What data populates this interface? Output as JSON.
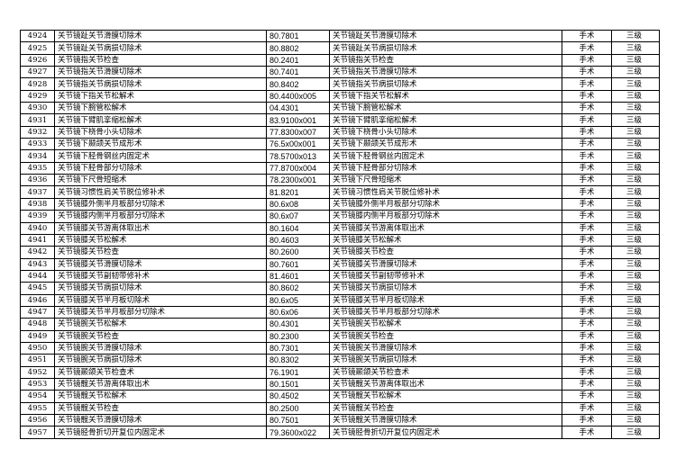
{
  "table": {
    "rows": [
      [
        "4924",
        "关节镜趾关节滑膜切除术",
        "80.7801",
        "关节镜趾关节滑膜切除术",
        "手术",
        "三级"
      ],
      [
        "4925",
        "关节镜趾关节病损切除术",
        "80.8802",
        "关节镜趾关节病损切除术",
        "手术",
        "三级"
      ],
      [
        "4926",
        "关节镜指关节检查",
        "80.2401",
        "关节镜指关节检查",
        "手术",
        "三级"
      ],
      [
        "4927",
        "关节镜指关节滑膜切除术",
        "80.7401",
        "关节镜指关节滑膜切除术",
        "手术",
        "三级"
      ],
      [
        "4928",
        "关节镜指关节病损切除术",
        "80.8402",
        "关节镜指关节病损切除术",
        "手术",
        "三级"
      ],
      [
        "4929",
        "关节镜下指关节松解术",
        "80.4400x005",
        "关节镜下指关节松解术",
        "手术",
        "三级"
      ],
      [
        "4930",
        "关节镜下腕管松解术",
        "04.4301",
        "关节镜下腕管松解术",
        "手术",
        "三级"
      ],
      [
        "4931",
        "关节镜下臂肌挛缩松解术",
        "83.9100x001",
        "关节镜下臂肌挛缩松解术",
        "手术",
        "三级"
      ],
      [
        "4932",
        "关节镜下桡骨小头切除术",
        "77.8300x007",
        "关节镜下桡骨小头切除术",
        "手术",
        "三级"
      ],
      [
        "4933",
        "关节镜下颞颌关节成形术",
        "76.5x00x001",
        "关节镜下颞颌关节成形术",
        "手术",
        "三级"
      ],
      [
        "4934",
        "关节镜下胫骨钢丝内固定术",
        "78.5700x013",
        "关节镜下胫骨钢丝内固定术",
        "手术",
        "三级"
      ],
      [
        "4935",
        "关节镜下胫骨部分切除术",
        "77.8700x004",
        "关节镜下胫骨部分切除术",
        "手术",
        "三级"
      ],
      [
        "4936",
        "关节镜下尺骨短缩术",
        "78.2300x001",
        "关节镜下尺骨短缩术",
        "手术",
        "三级"
      ],
      [
        "4937",
        "关节镜习惯性肩关节脱位修补术",
        "81.8201",
        "关节镜习惯性肩关节脱位修补术",
        "手术",
        "三级"
      ],
      [
        "4938",
        "关节镜膝外侧半月板部分切除术",
        "80.6x08",
        "关节镜膝外侧半月板部分切除术",
        "手术",
        "三级"
      ],
      [
        "4939",
        "关节镜膝内侧半月板部分切除术",
        "80.6x07",
        "关节镜膝内侧半月板部分切除术",
        "手术",
        "三级"
      ],
      [
        "4940",
        "关节镜膝关节游离体取出术",
        "80.1604",
        "关节镜膝关节游离体取出术",
        "手术",
        "三级"
      ],
      [
        "4941",
        "关节镜膝关节松解术",
        "80.4603",
        "关节镜膝关节松解术",
        "手术",
        "三级"
      ],
      [
        "4942",
        "关节镜膝关节检查",
        "80.2600",
        "关节镜膝关节检查",
        "手术",
        "三级"
      ],
      [
        "4943",
        "关节镜膝关节滑膜切除术",
        "80.7601",
        "关节镜膝关节滑膜切除术",
        "手术",
        "三级"
      ],
      [
        "4944",
        "关节镜膝关节副韧带修补术",
        "81.4601",
        "关节镜膝关节副韧带修补术",
        "手术",
        "三级"
      ],
      [
        "4945",
        "关节镜膝关节病损切除术",
        "80.8602",
        "关节镜膝关节病损切除术",
        "手术",
        "三级"
      ],
      [
        "4946",
        "关节镜膝关节半月板切除术",
        "80.6x05",
        "关节镜膝关节半月板切除术",
        "手术",
        "三级"
      ],
      [
        "4947",
        "关节镜膝关节半月板部分切除术",
        "80.6x06",
        "关节镜膝关节半月板部分切除术",
        "手术",
        "三级"
      ],
      [
        "4948",
        "关节镜腕关节松解术",
        "80.4301",
        "关节镜腕关节松解术",
        "手术",
        "三级"
      ],
      [
        "4949",
        "关节镜腕关节检查",
        "80.2300",
        "关节镜腕关节检查",
        "手术",
        "三级"
      ],
      [
        "4950",
        "关节镜腕关节滑膜切除术",
        "80.7301",
        "关节镜腕关节滑膜切除术",
        "手术",
        "三级"
      ],
      [
        "4951",
        "关节镜腕关节病损切除术",
        "80.8302",
        "关节镜腕关节病损切除术",
        "手术",
        "三级"
      ],
      [
        "4952",
        "关节镜颞颌关节检查术",
        "76.1901",
        "关节镜颞颌关节检查术",
        "手术",
        "三级"
      ],
      [
        "4953",
        "关节镜髋关节游离体取出术",
        "80.1501",
        "关节镜髋关节游离体取出术",
        "手术",
        "三级"
      ],
      [
        "4954",
        "关节镜髋关节松解术",
        "80.4502",
        "关节镜髋关节松解术",
        "手术",
        "三级"
      ],
      [
        "4955",
        "关节镜髋关节检查",
        "80.2500",
        "关节镜髋关节检查",
        "手术",
        "三级"
      ],
      [
        "4956",
        "关节镜髋关节滑膜切除术",
        "80.7501",
        "关节镜髋关节滑膜切除术",
        "手术",
        "三级"
      ],
      [
        "4957",
        "关节镜胫骨折切开复位内固定术",
        "79.3600x022",
        "关节镜胫骨折切开复位内固定术",
        "手术",
        "三级"
      ]
    ]
  }
}
